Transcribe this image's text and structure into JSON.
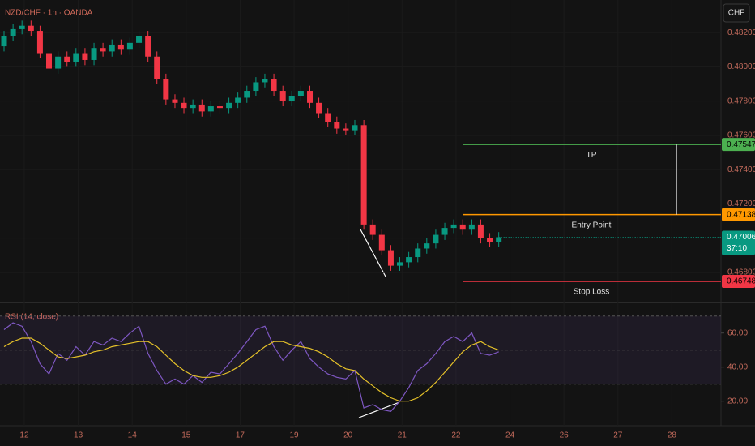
{
  "chart_data": [
    {
      "type": "candlestick",
      "title": "NZD/CHF · 1h · OANDA",
      "currency": "CHF",
      "up_color": "#089981",
      "down_color": "#f23645",
      "x": [
        -0.375,
        -0.208,
        -0.042,
        0.125,
        0.292,
        0.458,
        0.625,
        0.792,
        0.958,
        1.125,
        1.292,
        1.458,
        1.625,
        1.792,
        1.958,
        2.125,
        2.292,
        2.458,
        2.625,
        2.792,
        2.958,
        3.125,
        3.292,
        3.458,
        3.625,
        3.792,
        3.958,
        4.125,
        4.292,
        4.458,
        4.625,
        4.792,
        4.958,
        5.125,
        5.292,
        5.458,
        5.625,
        5.792,
        5.958,
        6.125,
        6.292,
        6.458,
        6.625,
        6.792,
        6.958,
        7.125,
        7.292,
        7.458,
        7.625,
        7.792,
        7.958,
        8.125,
        8.292,
        8.458,
        8.625,
        8.792
      ],
      "open": [
        0.4812,
        0.4818,
        0.4822,
        0.4824,
        0.4821,
        0.4808,
        0.4799,
        0.4806,
        0.4803,
        0.4808,
        0.4804,
        0.4811,
        0.4809,
        0.4813,
        0.481,
        0.4814,
        0.4818,
        0.4806,
        0.4793,
        0.4781,
        0.4779,
        0.4776,
        0.4778,
        0.4774,
        0.4777,
        0.4776,
        0.4779,
        0.4782,
        0.4786,
        0.4791,
        0.4793,
        0.4786,
        0.478,
        0.4783,
        0.4786,
        0.4779,
        0.4773,
        0.4768,
        0.4764,
        0.4763,
        0.4766,
        0.4708,
        0.4702,
        0.4693,
        0.4684,
        0.4686,
        0.4689,
        0.4694,
        0.4697,
        0.4702,
        0.4706,
        0.4708,
        0.4705,
        0.4708,
        0.47,
        0.4698
      ],
      "high": [
        0.4821,
        0.4825,
        0.4827,
        0.4827,
        0.4824,
        0.4811,
        0.4809,
        0.4809,
        0.4811,
        0.4811,
        0.4814,
        0.4814,
        0.4816,
        0.4816,
        0.4817,
        0.4821,
        0.4821,
        0.4809,
        0.4796,
        0.4784,
        0.4782,
        0.4781,
        0.4781,
        0.478,
        0.478,
        0.4782,
        0.4785,
        0.4789,
        0.4794,
        0.4796,
        0.4796,
        0.4789,
        0.4786,
        0.4789,
        0.4789,
        0.4782,
        0.4776,
        0.4771,
        0.4767,
        0.4769,
        0.4769,
        0.4711,
        0.4705,
        0.4696,
        0.4689,
        0.4692,
        0.4697,
        0.47,
        0.4705,
        0.4709,
        0.4711,
        0.4711,
        0.4711,
        0.4711,
        0.4703,
        0.47036
      ],
      "low": [
        0.4809,
        0.4815,
        0.4819,
        0.4818,
        0.4805,
        0.4796,
        0.4796,
        0.48,
        0.48,
        0.4801,
        0.4801,
        0.4806,
        0.4806,
        0.4807,
        0.4807,
        0.4811,
        0.4803,
        0.479,
        0.4778,
        0.4776,
        0.4773,
        0.4773,
        0.4771,
        0.4771,
        0.4773,
        0.4773,
        0.4776,
        0.4779,
        0.4783,
        0.4788,
        0.4783,
        0.4777,
        0.4777,
        0.478,
        0.4776,
        0.477,
        0.4765,
        0.4761,
        0.476,
        0.476,
        0.4705,
        0.4699,
        0.469,
        0.4681,
        0.4681,
        0.4683,
        0.4686,
        0.4691,
        0.4694,
        0.4699,
        0.4703,
        0.4702,
        0.4702,
        0.4697,
        0.4695,
        0.4695
      ],
      "close": [
        0.4818,
        0.4822,
        0.4824,
        0.4821,
        0.4808,
        0.4799,
        0.4806,
        0.4803,
        0.4808,
        0.4804,
        0.4811,
        0.4809,
        0.4813,
        0.481,
        0.4814,
        0.4818,
        0.4806,
        0.4793,
        0.4781,
        0.4779,
        0.4776,
        0.4778,
        0.4774,
        0.4777,
        0.4776,
        0.4779,
        0.4782,
        0.4786,
        0.4791,
        0.4793,
        0.4786,
        0.478,
        0.4783,
        0.4786,
        0.4779,
        0.4773,
        0.4768,
        0.4764,
        0.4763,
        0.4766,
        0.4708,
        0.4702,
        0.4693,
        0.4684,
        0.4686,
        0.4689,
        0.4694,
        0.4697,
        0.4702,
        0.4706,
        0.4708,
        0.4705,
        0.4708,
        0.47,
        0.4698,
        0.47006
      ],
      "xlim": [
        -0.45,
        12.91
      ],
      "xticks": [
        {
          "value": 0,
          "label": "12"
        },
        {
          "value": 1,
          "label": "13"
        },
        {
          "value": 2,
          "label": "14"
        },
        {
          "value": 3,
          "label": "15"
        },
        {
          "value": 4,
          "label": "17"
        },
        {
          "value": 5,
          "label": "19"
        },
        {
          "value": 6,
          "label": "20"
        },
        {
          "value": 7,
          "label": "21"
        },
        {
          "value": 8,
          "label": "22"
        },
        {
          "value": 9,
          "label": "24"
        },
        {
          "value": 10,
          "label": "26"
        },
        {
          "value": 11,
          "label": "27"
        },
        {
          "value": 12,
          "label": "28"
        }
      ],
      "ylim": [
        0.4663,
        0.4839
      ],
      "yticks": [
        {
          "value": 0.482,
          "label": "0.48200"
        },
        {
          "value": 0.48,
          "label": "0.48000"
        },
        {
          "value": 0.478,
          "label": "0.47800"
        },
        {
          "value": 0.476,
          "label": "0.47600"
        },
        {
          "value": 0.474,
          "label": "0.47400"
        },
        {
          "value": 0.472,
          "label": "0.47200"
        },
        {
          "value": 0.47,
          "label": "0.47000"
        },
        {
          "value": 0.468,
          "label": "0.46800"
        }
      ],
      "grid": true,
      "levels": [
        {
          "label": "TP",
          "value": 0.47547,
          "color": "#4caf50"
        },
        {
          "label": "Entry Point",
          "value": 0.47138,
          "color": "#ff9800"
        },
        {
          "label": "Stop Loss",
          "value": 0.46748,
          "color": "#f23645"
        }
      ],
      "last_price": 0.47006,
      "last_price_color": "#089981",
      "countdown": "37:10"
    },
    {
      "type": "line",
      "title": "RSI (14, close)",
      "series": [
        {
          "color": "#7e57c2",
          "values": [
            62,
            66,
            64,
            55,
            42,
            36,
            48,
            44,
            52,
            47,
            55,
            53,
            57,
            55,
            60,
            64,
            48,
            38,
            30,
            33,
            30,
            35,
            31,
            37,
            36,
            42,
            48,
            55,
            62,
            64,
            52,
            44,
            50,
            55,
            45,
            40,
            36,
            34,
            33,
            38,
            16,
            18,
            15,
            14,
            20,
            28,
            38,
            42,
            48,
            55,
            58,
            55,
            60,
            48,
            47,
            49
          ]
        },
        {
          "color": "#e6c229",
          "values": [
            52,
            55,
            57,
            57,
            54,
            50,
            46,
            45,
            46,
            47,
            49,
            50,
            52,
            53,
            54,
            55,
            55,
            52,
            47,
            42,
            38,
            35,
            34,
            34,
            35,
            37,
            40,
            44,
            48,
            52,
            55,
            55,
            53,
            52,
            51,
            49,
            46,
            42,
            39,
            38,
            33,
            29,
            25,
            22,
            20,
            20,
            22,
            26,
            31,
            37,
            43,
            49,
            53,
            55,
            52,
            50
          ]
        }
      ],
      "ylim": [
        7,
        77
      ],
      "yticks": [
        {
          "value": 60,
          "label": "60.00"
        },
        {
          "value": 40,
          "label": "40.00"
        },
        {
          "value": 20,
          "label": "20.00"
        }
      ],
      "bands": [
        70,
        50,
        30
      ]
    }
  ]
}
